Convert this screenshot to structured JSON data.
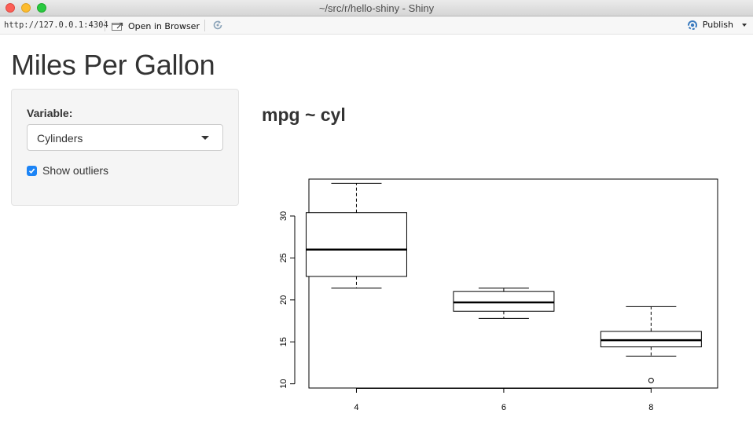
{
  "window": {
    "title": "~/src/r/hello-shiny - Shiny"
  },
  "toolbar": {
    "url": "http://127.0.0.1:4304",
    "open_browser_label": "Open in Browser",
    "publish_label": "Publish"
  },
  "page": {
    "title": "Miles Per Gallon"
  },
  "sidebar": {
    "variable_label": "Variable:",
    "variable_selected": "Cylinders",
    "show_outliers_label": "Show outliers",
    "show_outliers_checked": true
  },
  "main": {
    "plot_title": "mpg ~ cyl"
  },
  "chart_data": {
    "type": "boxplot",
    "categories": [
      "4",
      "6",
      "8"
    ],
    "boxes": [
      {
        "category": "4",
        "min": 21.4,
        "q1": 22.8,
        "median": 26.0,
        "q3": 30.4,
        "max": 33.9,
        "outliers": []
      },
      {
        "category": "6",
        "min": 17.8,
        "q1": 18.65,
        "median": 19.7,
        "q3": 21.0,
        "max": 21.4,
        "outliers": []
      },
      {
        "category": "8",
        "min": 13.3,
        "q1": 14.4,
        "median": 15.2,
        "q3": 16.25,
        "max": 19.2,
        "outliers": [
          10.4
        ]
      }
    ],
    "y_ticks": [
      10,
      15,
      20,
      25,
      30
    ],
    "ylim": [
      9.5,
      34.4
    ],
    "grid": false
  }
}
